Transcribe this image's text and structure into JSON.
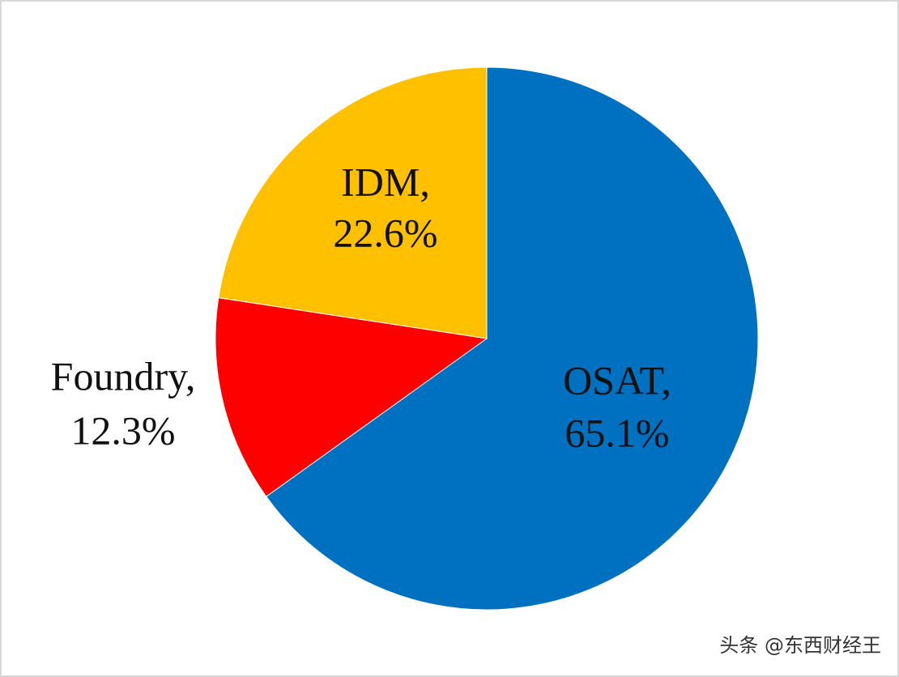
{
  "chart_data": {
    "type": "pie",
    "categories": [
      "OSAT,",
      "Foundry,",
      "IDM,"
    ],
    "values": [
      65.1,
      12.3,
      22.6
    ],
    "value_labels": [
      "65.1%",
      "12.3%",
      "22.6%"
    ],
    "colors": [
      "#0070c0",
      "#ff0000",
      "#ffc000"
    ]
  },
  "watermark": "头条 @东西财经王"
}
